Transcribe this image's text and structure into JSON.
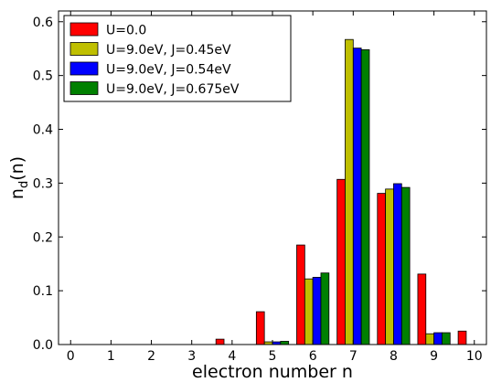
{
  "chart_data": {
    "type": "bar",
    "xlabel": "electron number n",
    "ylabel_main": "n",
    "ylabel_sub": "d",
    "ylabel_tail": "(n)",
    "xlim": [
      -0.3,
      10.3
    ],
    "ylim": [
      0.0,
      0.62
    ],
    "x_ticks": [
      0,
      1,
      2,
      3,
      4,
      5,
      6,
      7,
      8,
      9,
      10
    ],
    "y_ticks": [
      0.0,
      0.1,
      0.2,
      0.3,
      0.4,
      0.5,
      0.6
    ],
    "y_tick_labels": [
      "0.0",
      "0.1",
      "0.2",
      "0.3",
      "0.4",
      "0.5",
      "0.6"
    ],
    "legend_position": "top-left",
    "grid": false,
    "series": [
      {
        "name": "U=0.0",
        "color": "#ff0000",
        "values": [
          0.0,
          0.0,
          0.0,
          0.0,
          0.01,
          0.061,
          0.185,
          0.307,
          0.281,
          0.131,
          0.025
        ]
      },
      {
        "name": "U=9.0eV, J=0.45eV",
        "color": "#bfbf00",
        "values": [
          0.0,
          0.0,
          0.0,
          0.0,
          0.0,
          0.005,
          0.122,
          0.567,
          0.289,
          0.02,
          0.0
        ]
      },
      {
        "name": "U=9.0eV, J=0.54eV",
        "color": "#0000ff",
        "values": [
          0.0,
          0.0,
          0.0,
          0.0,
          0.0,
          0.005,
          0.125,
          0.551,
          0.299,
          0.022,
          0.0
        ]
      },
      {
        "name": "U=9.0eV, J=0.675eV",
        "color": "#008000",
        "values": [
          0.0,
          0.0,
          0.0,
          0.0,
          0.0,
          0.006,
          0.133,
          0.548,
          0.292,
          0.022,
          0.0
        ]
      }
    ]
  }
}
